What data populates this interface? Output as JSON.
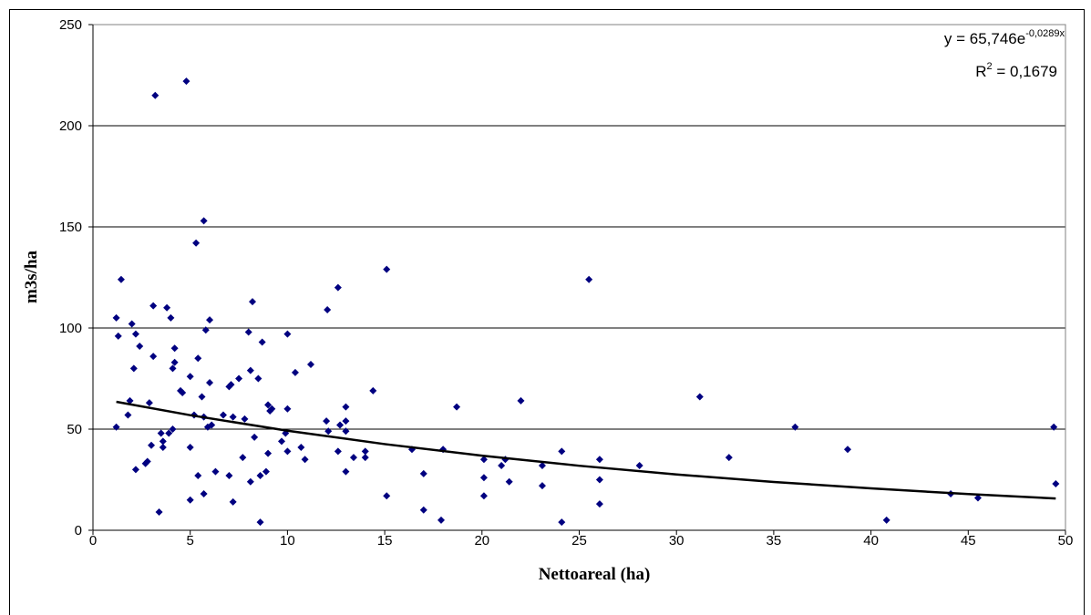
{
  "chart_data": {
    "type": "scatter",
    "x_label": "Nettoareal (ha)",
    "y_label": "m3s/ha",
    "equation": {
      "base": "y = 65,746e",
      "exponent": "-0,0289x"
    },
    "r_squared": {
      "base": "R",
      "exponent": "2",
      "rest": " = 0,1679"
    },
    "xlim": [
      0,
      50
    ],
    "xticks": [
      0,
      5,
      10,
      15,
      20,
      25,
      30,
      35,
      40,
      45,
      50
    ],
    "ylim": [
      0,
      250
    ],
    "yticks": [
      0,
      50,
      100,
      150,
      200,
      250
    ],
    "grid": true,
    "color": "#000080",
    "x": [
      1.2,
      1.3,
      1.2,
      1.45,
      1.9,
      1.8,
      2.0,
      2.2,
      2.1,
      2.2,
      2.4,
      2.7,
      2.8,
      2.9,
      3.0,
      3.1,
      3.1,
      3.2,
      3.4,
      3.5,
      3.6,
      3.6,
      3.8,
      3.9,
      4.0,
      4.1,
      4.1,
      4.2,
      4.2,
      4.5,
      4.6,
      4.8,
      5.0,
      5.0,
      5.0,
      5.2,
      5.3,
      5.4,
      5.4,
      5.6,
      5.7,
      5.7,
      5.7,
      5.8,
      5.9,
      6.0,
      6.0,
      6.1,
      6.3,
      6.7,
      7.0,
      7.1,
      7.0,
      7.2,
      7.2,
      7.5,
      7.7,
      7.8,
      8.0,
      8.1,
      8.1,
      8.2,
      8.3,
      8.5,
      8.6,
      8.6,
      8.7,
      8.9,
      9.0,
      9.0,
      9.1,
      9.2,
      9.7,
      9.9,
      10.0,
      10.0,
      10.0,
      10.4,
      10.7,
      10.9,
      11.2,
      12.0,
      12.05,
      12.1,
      12.6,
      12.6,
      12.7,
      13.0,
      13.0,
      13.0,
      13.0,
      13.4,
      14.0,
      14.0,
      14.4,
      15.1,
      15.1,
      16.4,
      17.0,
      17.0,
      17.9,
      18.0,
      18.7,
      20.1,
      20.1,
      20.1,
      21.0,
      21.2,
      21.4,
      22.0,
      23.1,
      23.1,
      24.1,
      24.1,
      25.5,
      26.05,
      26.05,
      26.05,
      28.1,
      31.2,
      32.7,
      36.1,
      38.8,
      40.8,
      44.1,
      45.5,
      49.4,
      49.5
    ],
    "values": [
      105,
      96,
      51,
      124,
      64,
      57,
      102,
      97,
      80,
      30,
      91,
      33,
      34,
      63,
      42,
      111,
      86,
      215,
      9,
      48,
      44,
      41,
      110,
      48,
      105,
      50,
      80,
      83,
      90,
      69,
      68,
      222,
      76,
      41,
      15,
      57,
      142,
      85,
      27,
      66,
      56,
      18,
      153,
      99,
      51,
      73,
      104,
      52,
      29,
      57,
      71,
      72,
      27,
      56,
      14,
      75,
      36,
      55,
      98,
      79,
      24,
      113,
      46,
      75,
      27,
      4,
      93,
      29,
      38,
      62,
      59,
      60,
      44,
      48,
      39,
      97,
      60,
      78,
      41,
      35,
      82,
      54,
      109,
      49,
      120,
      39,
      52,
      54,
      61,
      49,
      29,
      36,
      36,
      39,
      69,
      129,
      17,
      40,
      28,
      10,
      5,
      40,
      61,
      35,
      26,
      17,
      32,
      35,
      24,
      64,
      32,
      22,
      39,
      4,
      124,
      35,
      25,
      13,
      32,
      66,
      36,
      51,
      40,
      5,
      18,
      16,
      51,
      23
    ],
    "trendline": {
      "color": "#000000",
      "x": [
        1.2,
        5,
        10,
        15,
        20,
        25,
        30,
        35,
        40,
        45,
        49.5
      ],
      "values": [
        63.5,
        56.9,
        49.2,
        42.6,
        36.9,
        31.9,
        27.6,
        23.9,
        20.7,
        17.9,
        15.7
      ]
    }
  }
}
